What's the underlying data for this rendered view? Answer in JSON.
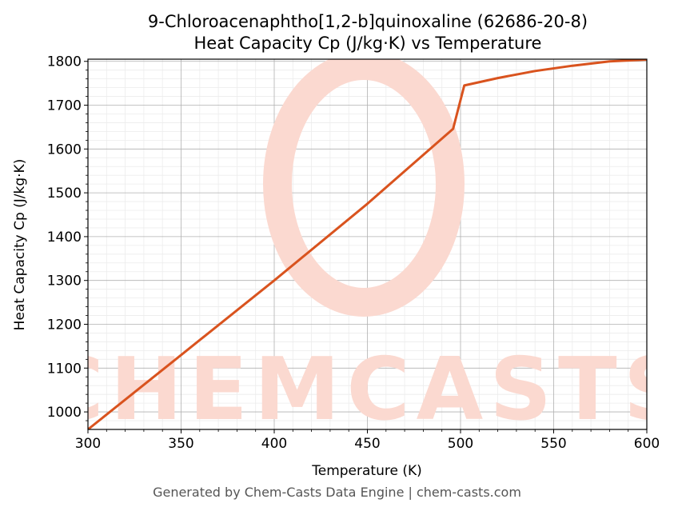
{
  "chart_data": {
    "type": "line",
    "title": "9-Chloroacenaphtho[1,2-b]quinoxaline (62686-20-8)",
    "subtitle": "Heat Capacity Cp (J/kg·K) vs Temperature",
    "xlabel": "Temperature (K)",
    "ylabel": "Heat Capacity Cp (J/kg·K)",
    "xlim": [
      300,
      600
    ],
    "ylim": [
      960,
      1805
    ],
    "xticks": [
      300,
      350,
      400,
      450,
      500,
      550,
      600
    ],
    "yticks": [
      1000,
      1100,
      1200,
      1300,
      1400,
      1500,
      1600,
      1700,
      1800
    ],
    "grid": true,
    "series": [
      {
        "color": "#d9531e",
        "x": [
          300,
          350,
          400,
          450,
          496,
          502,
          520,
          540,
          560,
          580,
          600
        ],
        "y": [
          960,
          1130,
          1300,
          1475,
          1646,
          1745,
          1762,
          1778,
          1790,
          1800,
          1804
        ]
      }
    ]
  },
  "watermark": {
    "text": "CHEMCASTS",
    "color": "#fbd9d0"
  },
  "footer": "Generated by Chem-Casts Data Engine | chem-casts.com"
}
